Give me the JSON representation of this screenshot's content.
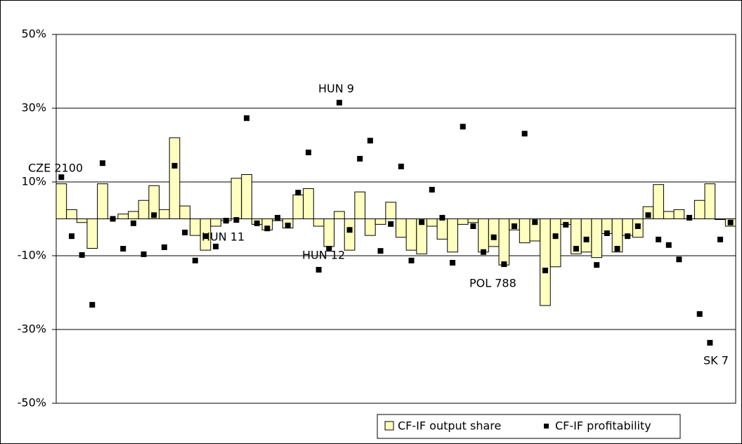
{
  "chart_data": {
    "type": "bar-dot",
    "ylim": [
      -50,
      50
    ],
    "yticks": [
      {
        "value": -50,
        "label": "-50%"
      },
      {
        "value": -30,
        "label": "-30%"
      },
      {
        "value": -10,
        "label": "-10%"
      },
      {
        "value": 10,
        "label": "10%"
      },
      {
        "value": 30,
        "label": "30%"
      },
      {
        "value": 50,
        "label": "50%"
      }
    ],
    "grid": true,
    "series": [
      {
        "name": "CF-IF output share",
        "color": "#ffffc0",
        "kind": "bar",
        "values": [
          9.5,
          2.5,
          -1,
          -8,
          9.5,
          0,
          1.3,
          2,
          5,
          9,
          2.5,
          22,
          3.5,
          -4.5,
          -8.5,
          -2,
          -0.5,
          11,
          12,
          -1.5,
          -3,
          -0.5,
          -2.5,
          6.5,
          8.2,
          -2,
          -7.5,
          2,
          -8.5,
          7.3,
          -4.5,
          -1.5,
          4.5,
          -5,
          -8.5,
          -9.5,
          -2,
          -5.5,
          -9,
          -1.5,
          -1,
          -9,
          -7.5,
          -12.5,
          -3,
          -6.5,
          -6,
          -23.5,
          -13,
          -1.5,
          -9.5,
          -9,
          -10.5,
          -4,
          -9,
          -4.5,
          -5,
          3.3,
          9.3,
          2,
          2.5,
          0,
          5,
          9.5,
          -0.2,
          -2
        ]
      },
      {
        "name": "CF-IF profitability",
        "color": "#000000",
        "kind": "dot",
        "values": [
          11.3,
          -4.7,
          -9.8,
          -23.3,
          15.1,
          0,
          -8.1,
          -1.2,
          -9.6,
          1,
          -7.7,
          14.4,
          -3.7,
          -11.3,
          -4.7,
          -7.5,
          -0.5,
          -0.3,
          27.3,
          -1.2,
          -2.6,
          0.3,
          -1.8,
          7.1,
          18,
          -13.8,
          -8.1,
          31.5,
          -3,
          16.3,
          21.2,
          -8.7,
          -1.4,
          14.2,
          -11.3,
          -0.9,
          7.9,
          0.3,
          -11.9,
          25,
          -2,
          -9,
          -5,
          -12.3,
          -2,
          23.1,
          -0.9,
          -14,
          -4.7,
          -1.6,
          -8.1,
          -5.6,
          -12.5,
          -3.9,
          -8.1,
          -4.7,
          -2,
          1,
          -5.6,
          -7.1,
          -11,
          0.3,
          -25.8,
          -33.6,
          -5.6,
          -1
        ]
      }
    ],
    "annotations": [
      "CZE 2100",
      "HUN 9",
      "HUN 11",
      "HUN 12",
      "POL 788",
      "SK 7"
    ]
  }
}
